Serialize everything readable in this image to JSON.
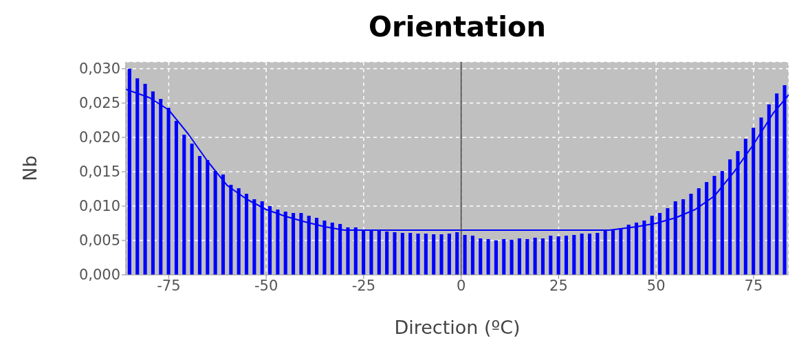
{
  "chart_data": {
    "type": "histogram",
    "title": "Orientation",
    "xlabel": "Direction (ºC)",
    "ylabel": "Nb",
    "bins": [
      -86,
      -84,
      -82,
      -80,
      -78,
      -76,
      -74,
      -72,
      -70,
      -68,
      -66,
      -64,
      -62,
      -60,
      -58,
      -56,
      -54,
      -52,
      -50,
      -48,
      -46,
      -44,
      -42,
      -40,
      -38,
      -36,
      -34,
      -32,
      -30,
      -28,
      -26,
      -24,
      -22,
      -20,
      -18,
      -16,
      -14,
      -12,
      -10,
      -8,
      -6,
      -4,
      -2,
      0,
      2,
      4,
      6,
      8,
      10,
      12,
      14,
      16,
      18,
      20,
      22,
      24,
      26,
      28,
      30,
      32,
      34,
      36,
      38,
      40,
      42,
      44,
      46,
      48,
      50,
      52,
      54,
      56,
      58,
      60,
      62,
      64,
      66,
      68,
      70,
      72,
      74,
      76,
      78,
      80,
      82,
      84
    ],
    "values": [
      0.03,
      0.0286,
      0.0278,
      0.0267,
      0.0256,
      0.0243,
      0.0224,
      0.0204,
      0.0191,
      0.0173,
      0.0167,
      0.0151,
      0.0146,
      0.0131,
      0.0126,
      0.0118,
      0.011,
      0.0107,
      0.01,
      0.0095,
      0.0092,
      0.009,
      0.009,
      0.0086,
      0.0083,
      0.0079,
      0.0076,
      0.0074,
      0.0069,
      0.0069,
      0.0064,
      0.0064,
      0.0064,
      0.0063,
      0.0062,
      0.0061,
      0.0061,
      0.006,
      0.006,
      0.0059,
      0.0059,
      0.006,
      0.0062,
      0.0058,
      0.0057,
      0.0053,
      0.0052,
      0.005,
      0.0052,
      0.0051,
      0.0053,
      0.0052,
      0.0054,
      0.0053,
      0.0057,
      0.0056,
      0.0057,
      0.0058,
      0.006,
      0.006,
      0.0061,
      0.0064,
      0.0066,
      0.0068,
      0.0073,
      0.0076,
      0.0079,
      0.0086,
      0.009,
      0.0097,
      0.0107,
      0.011,
      0.0118,
      0.0126,
      0.0135,
      0.0144,
      0.0151,
      0.0168,
      0.018,
      0.0198,
      0.0214,
      0.0229,
      0.0248,
      0.0264,
      0.0276
    ],
    "color": "#0000ff",
    "series": [
      {
        "type": "line",
        "color": "#0000ff",
        "x": [
          -86,
          -80,
          -75,
          -70,
          -65,
          -60,
          -55,
          -50,
          -45,
          -40,
          -35,
          -30,
          0,
          38,
          45,
          50,
          55,
          60,
          65,
          70,
          75,
          80,
          84
        ],
        "values": [
          0.027,
          0.0258,
          0.024,
          0.0205,
          0.0165,
          0.013,
          0.011,
          0.0095,
          0.0085,
          0.0077,
          0.007,
          0.0065,
          0.0065,
          0.0065,
          0.007,
          0.0075,
          0.0083,
          0.0095,
          0.0115,
          0.015,
          0.019,
          0.0235,
          0.0262
        ]
      }
    ],
    "xlim": [
      -86,
      84
    ],
    "xticks": [
      -75,
      -50,
      -25,
      0,
      25,
      50,
      75
    ],
    "ylim": [
      0,
      0.031
    ],
    "yticks": [
      {
        "value": 0,
        "label": "0,000"
      },
      {
        "value": 0.005,
        "label": "0,005"
      },
      {
        "value": 0.01,
        "label": "0,010"
      },
      {
        "value": 0.015,
        "label": "0,015"
      },
      {
        "value": 0.02,
        "label": "0,020"
      },
      {
        "value": 0.025,
        "label": "0,025"
      },
      {
        "value": 0.03,
        "label": "0,030"
      }
    ],
    "ref_lines": [
      {
        "axis": "x",
        "value": 0,
        "color": "#404040"
      }
    ],
    "grid": true,
    "legend": false
  }
}
